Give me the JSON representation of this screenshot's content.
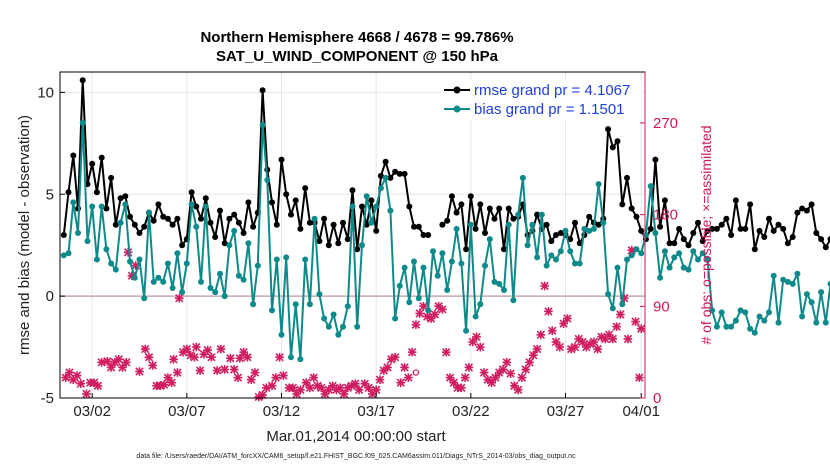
{
  "chart_data": {
    "type": "line",
    "title_line1": "Northern Hemisphere 4668 / 4678 = 99.786%",
    "title_line2": "SAT_U_WIND_COMPONENT @ 150 hPa",
    "xlabel": "Mar.01,2014 00:00:00 start",
    "ylabel": "rmse and bias (model - observation)",
    "ylabel_right": "# of obs: o=possible; ×=assimilated",
    "footer": "data file: /Users/raeder/DAI/ATM_forcXX/CAM6_setup/f.e21.FHIST_BGC.f09_025.CAM6assim.011/Diags_NTrS_2014-03/obs_diag_output.nc",
    "x_start_day": 0.5,
    "x_step_days": 0.25,
    "xlim": [
      0.3,
      31.2
    ],
    "ylim": [
      -5,
      11
    ],
    "ylim_right": [
      0,
      320
    ],
    "x_ticks": [
      {
        "day": 2,
        "label": "03/02"
      },
      {
        "day": 7,
        "label": "03/07"
      },
      {
        "day": 12,
        "label": "03/12"
      },
      {
        "day": 17,
        "label": "03/17"
      },
      {
        "day": 22,
        "label": "03/22"
      },
      {
        "day": 27,
        "label": "03/27"
      },
      {
        "day": 31,
        "label": "04/01"
      }
    ],
    "y_ticks": [
      {
        "value": -5,
        "label": "-5"
      },
      {
        "value": 0,
        "label": "0"
      },
      {
        "value": 5,
        "label": "5"
      },
      {
        "value": 10,
        "label": "10"
      }
    ],
    "y_ticks_right": [
      {
        "value": 0,
        "label": "0"
      },
      {
        "value": 90,
        "label": "90"
      },
      {
        "value": 180,
        "label": "180"
      },
      {
        "value": 270,
        "label": "270"
      }
    ],
    "colors": {
      "rmse": "#000000",
      "bias": "#0f8a8a",
      "obs": "#d01c60",
      "zero_line": "#c8a8b0",
      "legend_text": "#1f3fd6"
    },
    "series": [
      {
        "name": "rmse grand pr = 4.1067",
        "key": "rmse",
        "values": [
          3.0,
          5.1,
          6.9,
          4.3,
          10.6,
          5.5,
          6.5,
          5.1,
          6.8,
          4.3,
          5.8,
          3.5,
          4.8,
          4.9,
          3.9,
          3.5,
          3.1,
          3.4,
          4.1,
          3.7,
          4.5,
          3.9,
          3.8,
          3.5,
          3.8,
          2.5,
          2.8,
          5.1,
          4.4,
          3.8,
          4.8,
          3.6,
          2.9,
          4.2,
          2.6,
          3.8,
          4.0,
          3.6,
          3.1,
          4.6,
          3.4,
          4.1,
          10.1,
          6.2,
          4.6,
          3.5,
          6.7,
          5.0,
          4.0,
          4.7,
          3.3,
          5.3,
          3.6,
          3.6,
          2.7,
          3.8,
          2.5,
          3.5,
          2.6,
          3.6,
          2.8,
          5.2,
          2.3,
          4.4,
          3.5,
          4.7,
          3.2,
          5.9,
          6.6,
          5.8,
          6.1,
          6.0,
          6.0,
          4.4,
          3.4,
          3.4,
          3.0,
          3.0,
          null,
          null,
          3.5,
          3.7,
          4.9,
          4.1,
          4.5,
          2.3,
          4.9,
          3.3,
          4.5,
          3.1,
          4.3,
          3.8,
          4.3,
          2.3,
          4.3,
          3.8,
          3.9,
          4.5,
          3.0,
          3.2,
          4.0,
          3.3,
          3.5,
          2.7,
          3.0,
          3.1,
          3.0,
          2.8,
          3.6,
          2.6,
          3.0,
          3.9,
          3.6,
          3.5,
          3.8,
          8.2,
          7.3,
          7.6,
          4.5,
          5.8,
          4.3,
          3.9,
          3.2,
          2.8,
          3.3,
          6.7,
          3.4,
          4.7,
          2.6,
          2.6,
          3.3,
          2.8,
          2.5,
          3.1,
          3.6,
          2.7,
          3.2,
          3.3,
          3.3,
          3.5,
          3.8,
          3.0,
          4.7,
          3.3,
          3.3,
          4.5,
          2.3,
          3.2,
          2.9,
          3.8,
          3.2,
          3.5,
          3.3,
          2.6,
          2.9,
          4.1,
          4.3,
          4.2,
          4.5,
          3.1,
          2.8,
          2.4,
          2.8,
          2.5,
          4.5
        ]
      },
      {
        "name": "bias grand pr = 1.1501",
        "key": "bias",
        "values": [
          2.0,
          2.1,
          4.6,
          3.1,
          8.5,
          2.7,
          4.4,
          1.8,
          4.4,
          2.3,
          1.6,
          1.3,
          3.6,
          4.5,
          1.7,
          0.9,
          1.8,
          -0.1,
          4.1,
          0.7,
          0.9,
          0.7,
          1.6,
          0.4,
          2.1,
          0.2,
          1.6,
          4.5,
          3.4,
          0.7,
          4.4,
          0.4,
          0.2,
          1.1,
          0.0,
          2.5,
          3.2,
          1.0,
          0.8,
          2.6,
          -0.4,
          1.5,
          8.4,
          5.7,
          -0.7,
          1.8,
          -1.9,
          1.9,
          -3.0,
          -0.4,
          -3.1,
          1.8,
          -0.4,
          3.8,
          0.1,
          -1.1,
          -1.5,
          -0.9,
          -1.9,
          -1.5,
          -0.5,
          4.4,
          -1.5,
          2.5,
          4.9,
          3.6,
          4.4,
          5.3,
          5.8,
          4.2,
          -1.1,
          0.5,
          1.4,
          -0.3,
          1.7,
          -0.1,
          1.4,
          -0.7,
          2.2,
          1.0,
          2.1,
          0.3,
          1.7,
          3.3,
          1.6,
          -1.7,
          3.5,
          -1.0,
          -0.4,
          1.5,
          2.8,
          0.7,
          0.6,
          0.3,
          3.5,
          -0.2,
          4.0,
          5.8,
          2.5,
          3.5,
          1.9,
          4.0,
          1.5,
          2.0,
          1.8,
          2.2,
          3.2,
          2.2,
          1.6,
          1.6,
          3.3,
          3.2,
          3.3,
          5.5,
          3.6,
          0.1,
          -0.6,
          1.4,
          -0.4,
          1.8,
          2.0,
          2.3,
          2.1,
          3.0,
          5.4,
          3.1,
          0.9,
          2.2,
          1.4,
          1.9,
          2.1,
          1.4,
          1.3,
          2.2,
          1.8,
          2.1,
          1.8,
          -0.7,
          -1.5,
          -0.8,
          -1.5,
          -1.5,
          -1.2,
          -0.7,
          -0.8,
          -1.6,
          -1.8,
          -1.0,
          -1.2,
          -0.8,
          1.0,
          -1.3,
          0.8,
          0.7,
          0.6,
          1.1,
          -1.0,
          0.1,
          -0.3,
          -1.3,
          0.2,
          -1.3,
          0.6,
          1.6,
          2.1
        ]
      }
    ],
    "obs_assimilated": [
      [
        0.6,
        20
      ],
      [
        0.8,
        25
      ],
      [
        1.0,
        18
      ],
      [
        1.2,
        22
      ],
      [
        1.4,
        14
      ],
      [
        1.7,
        4
      ],
      [
        1.9,
        15
      ],
      [
        2.1,
        15
      ],
      [
        2.3,
        12
      ],
      [
        2.5,
        35
      ],
      [
        2.8,
        36
      ],
      [
        3.0,
        30
      ],
      [
        3.2,
        35
      ],
      [
        3.4,
        38
      ],
      [
        3.6,
        30
      ],
      [
        3.8,
        35
      ],
      [
        3.9,
        143
      ],
      [
        4.1,
        120
      ],
      [
        4.3,
        130
      ],
      [
        4.5,
        26
      ],
      [
        4.8,
        48
      ],
      [
        5.0,
        40
      ],
      [
        5.2,
        32
      ],
      [
        5.4,
        12
      ],
      [
        5.6,
        12
      ],
      [
        5.8,
        13
      ],
      [
        6.0,
        20
      ],
      [
        6.2,
        15
      ],
      [
        6.3,
        38
      ],
      [
        6.5,
        25
      ],
      [
        6.6,
        98
      ],
      [
        6.8,
        45
      ],
      [
        7.0,
        48
      ],
      [
        7.2,
        42
      ],
      [
        7.4,
        40
      ],
      [
        7.5,
        50
      ],
      [
        7.7,
        27
      ],
      [
        7.9,
        43
      ],
      [
        8.1,
        47
      ],
      [
        8.3,
        40
      ],
      [
        8.6,
        27
      ],
      [
        8.8,
        48
      ],
      [
        9.0,
        28
      ],
      [
        9.3,
        39
      ],
      [
        9.5,
        28
      ],
      [
        9.7,
        20
      ],
      [
        9.8,
        39
      ],
      [
        10.0,
        45
      ],
      [
        10.2,
        40
      ],
      [
        10.4,
        18
      ],
      [
        10.6,
        25
      ],
      [
        10.8,
        1
      ],
      [
        11.0,
        3
      ],
      [
        11.2,
        10
      ],
      [
        11.5,
        12
      ],
      [
        11.7,
        20
      ],
      [
        11.9,
        40
      ],
      [
        12.1,
        22
      ],
      [
        12.4,
        10
      ],
      [
        12.6,
        10
      ],
      [
        12.8,
        4
      ],
      [
        13.0,
        8
      ],
      [
        13.3,
        15
      ],
      [
        13.5,
        10
      ],
      [
        13.7,
        20
      ],
      [
        13.9,
        12
      ],
      [
        14.1,
        10
      ],
      [
        14.3,
        4
      ],
      [
        14.5,
        8
      ],
      [
        14.7,
        12
      ],
      [
        14.9,
        8
      ],
      [
        15.1,
        10
      ],
      [
        15.3,
        4
      ],
      [
        15.5,
        10
      ],
      [
        15.7,
        12
      ],
      [
        15.9,
        14
      ],
      [
        16.1,
        8
      ],
      [
        16.4,
        14
      ],
      [
        16.6,
        10
      ],
      [
        16.8,
        4
      ],
      [
        17.0,
        8
      ],
      [
        17.2,
        18
      ],
      [
        17.4,
        27
      ],
      [
        17.6,
        30
      ],
      [
        17.8,
        38
      ],
      [
        18.0,
        40
      ],
      [
        18.3,
        15
      ],
      [
        18.5,
        30
      ],
      [
        18.7,
        20
      ],
      [
        18.9,
        45
      ],
      [
        19.1,
        72
      ],
      [
        19.3,
        83
      ],
      [
        19.5,
        90
      ],
      [
        19.7,
        80
      ],
      [
        19.9,
        78
      ],
      [
        20.1,
        82
      ],
      [
        20.3,
        90
      ],
      [
        20.5,
        87
      ],
      [
        20.7,
        45
      ],
      [
        20.9,
        20
      ],
      [
        21.1,
        15
      ],
      [
        21.3,
        10
      ],
      [
        21.5,
        10
      ],
      [
        21.7,
        20
      ],
      [
        21.9,
        30
      ],
      [
        22.1,
        55
      ],
      [
        22.3,
        60
      ],
      [
        22.5,
        50
      ],
      [
        22.7,
        25
      ],
      [
        22.9,
        18
      ],
      [
        23.1,
        15
      ],
      [
        23.3,
        20
      ],
      [
        23.5,
        25
      ],
      [
        23.7,
        28
      ],
      [
        23.9,
        35
      ],
      [
        24.1,
        24
      ],
      [
        24.3,
        12
      ],
      [
        24.5,
        8
      ],
      [
        24.7,
        20
      ],
      [
        24.9,
        28
      ],
      [
        25.1,
        35
      ],
      [
        25.3,
        42
      ],
      [
        25.5,
        48
      ],
      [
        25.7,
        62
      ],
      [
        25.9,
        110
      ],
      [
        26.1,
        85
      ],
      [
        26.3,
        66
      ],
      [
        26.5,
        55
      ],
      [
        26.7,
        50
      ],
      [
        26.9,
        73
      ],
      [
        27.1,
        78
      ],
      [
        27.3,
        48
      ],
      [
        27.5,
        50
      ],
      [
        27.7,
        58
      ],
      [
        27.9,
        55
      ],
      [
        28.1,
        50
      ],
      [
        28.3,
        53
      ],
      [
        28.5,
        55
      ],
      [
        28.7,
        48
      ],
      [
        28.9,
        60
      ],
      [
        29.1,
        58
      ],
      [
        29.3,
        62
      ],
      [
        29.5,
        58
      ],
      [
        29.7,
        70
      ],
      [
        29.9,
        82
      ],
      [
        30.1,
        98
      ],
      [
        30.3,
        58
      ],
      [
        30.5,
        145
      ],
      [
        30.7,
        75
      ],
      [
        30.9,
        20
      ],
      [
        31.0,
        68
      ]
    ],
    "obs_possible": [
      [
        19.1,
        25
      ]
    ]
  }
}
